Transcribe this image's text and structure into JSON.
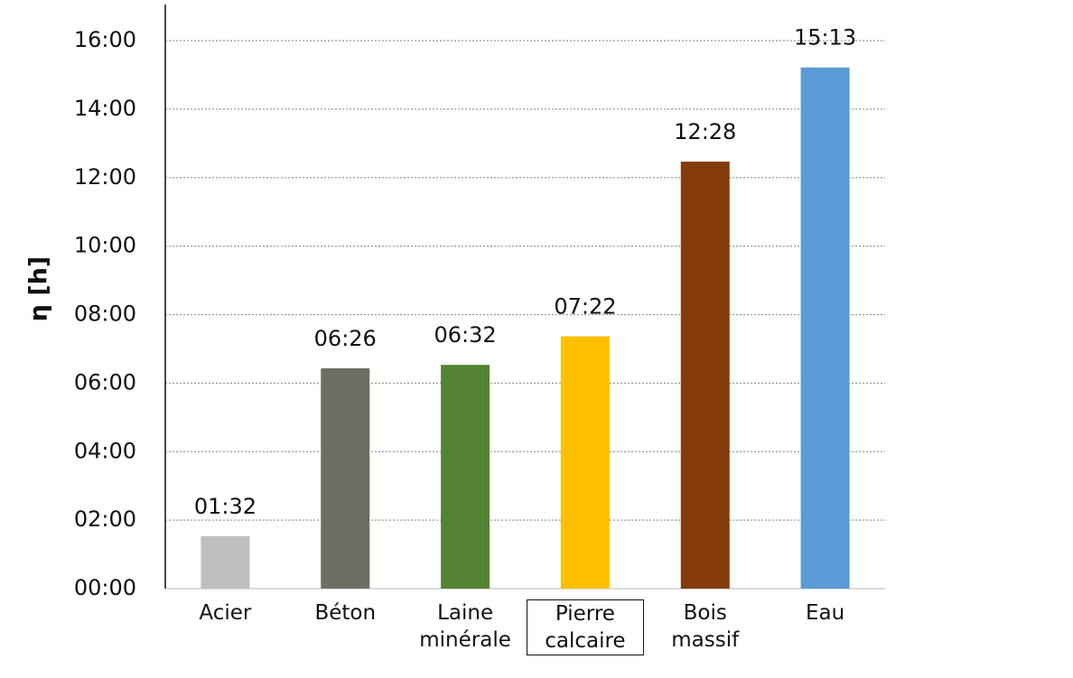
{
  "chart_data": {
    "type": "bar",
    "y_label": "η [h]",
    "categories": [
      "Acier",
      "Béton",
      "Laine minérale",
      "Pierre calcaire",
      "Bois massif",
      "Eau"
    ],
    "values": [
      1.5333,
      6.4333,
      6.5333,
      7.3667,
      12.4667,
      15.2167
    ],
    "value_labels": [
      "01:32",
      "06:26",
      "06:32",
      "07:22",
      "12:28",
      "15:13"
    ],
    "colors": [
      "#bfbfbf",
      "#6f6e63",
      "#548235",
      "#ffc000",
      "#843c0c",
      "#5b9bd5"
    ],
    "ylim": [
      0,
      16
    ],
    "yticks": [
      {
        "value": 0,
        "label": "00:00"
      },
      {
        "value": 2,
        "label": "02:00"
      },
      {
        "value": 4,
        "label": "04:00"
      },
      {
        "value": 6,
        "label": "06:00"
      },
      {
        "value": 8,
        "label": "08:00"
      },
      {
        "value": 10,
        "label": "10:00"
      },
      {
        "value": 12,
        "label": "12:00"
      },
      {
        "value": 14,
        "label": "14:00"
      },
      {
        "value": 16,
        "label": "16:00"
      }
    ],
    "grid": true,
    "boxed_category": 3
  }
}
